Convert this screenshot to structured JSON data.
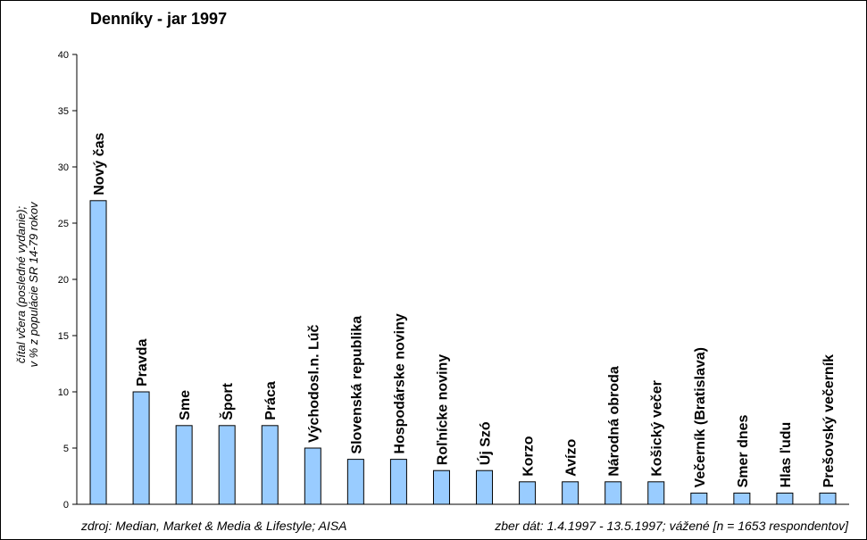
{
  "chart_data": {
    "type": "bar",
    "title": "Denníky - jar 1997",
    "ylabel_lines": [
      "čítal včera (posledné vydanie);",
      "v % z populácie SR 14-79 rokov"
    ],
    "xlabel": "",
    "ylim": [
      0,
      40
    ],
    "yticks": [
      0,
      5,
      10,
      15,
      20,
      25,
      30,
      35,
      40
    ],
    "grid": false,
    "bar_color": "#99ccff",
    "categories": [
      "Nový čas",
      "Pravda",
      "Sme",
      "Šport",
      "Práca",
      "Východosl.n. Lúč",
      "Slovenská republika",
      "Hospodárske noviny",
      "Roľnícke noviny",
      "Új Szó",
      "Korzo",
      "Avízo",
      "Národná obroda",
      "Košický večer",
      "Večerník (Bratislava)",
      "Smer dnes",
      "Hlas ľudu",
      "Prešovský večerník"
    ],
    "values": [
      27,
      10,
      7,
      7,
      7,
      5,
      4,
      4,
      3,
      3,
      2,
      2,
      2,
      2,
      1,
      1,
      1,
      1
    ]
  },
  "footer": {
    "source": "zdroj: Median, Market & Media & Lifestyle; AISA",
    "dates": "zber dát: 1.4.1997 - 13.5.1997; vážené [n = 1653 respondentov]"
  }
}
